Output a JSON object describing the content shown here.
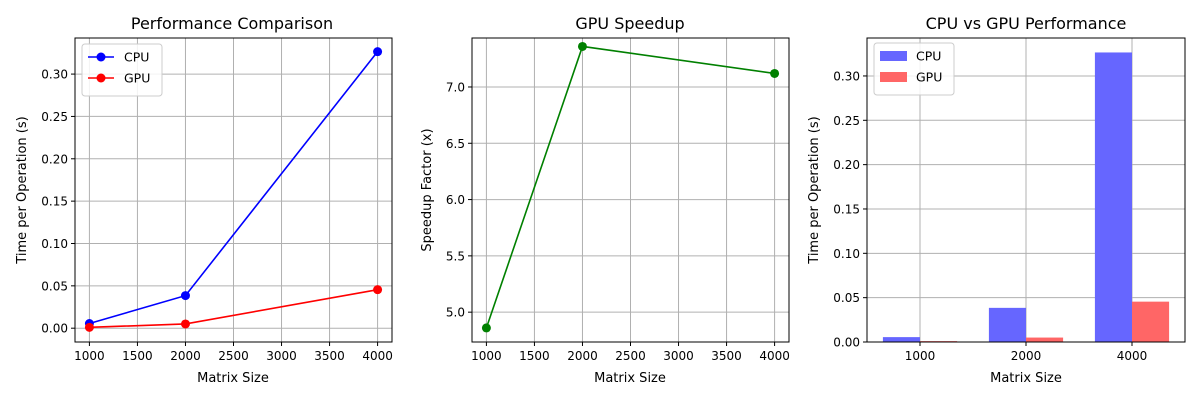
{
  "chart_data": [
    {
      "type": "line",
      "title": "Performance Comparison",
      "xlabel": "Matrix Size",
      "ylabel": "Time per Operation (s)",
      "x": [
        1000,
        2000,
        4000
      ],
      "xlim": [
        850,
        4150
      ],
      "ylim": [
        -0.0163,
        0.3426
      ],
      "xticks": [
        1000,
        1500,
        2000,
        2500,
        3000,
        3500,
        4000
      ],
      "xtick_labels": [
        "1000",
        "1500",
        "2000",
        "2500",
        "3000",
        "3500",
        "4000"
      ],
      "yticks": [
        0.0,
        0.05,
        0.1,
        0.15,
        0.2,
        0.25,
        0.3
      ],
      "ytick_labels": [
        "0.00",
        "0.05",
        "0.10",
        "0.15",
        "0.20",
        "0.25",
        "0.30"
      ],
      "grid": true,
      "legend": "upper-left",
      "series": [
        {
          "name": "CPU",
          "values": [
            0.0055,
            0.0385,
            0.3265
          ],
          "color": "#0000ff"
        },
        {
          "name": "GPU",
          "values": [
            0.001,
            0.005,
            0.0455
          ],
          "color": "#ff0000"
        }
      ]
    },
    {
      "type": "line",
      "title": "GPU Speedup",
      "xlabel": "Matrix Size",
      "ylabel": "Speedup Factor (x)",
      "x": [
        1000,
        2000,
        4000
      ],
      "xlim": [
        850,
        4150
      ],
      "ylim": [
        4.735,
        7.435
      ],
      "xticks": [
        1000,
        1500,
        2000,
        2500,
        3000,
        3500,
        4000
      ],
      "xtick_labels": [
        "1000",
        "1500",
        "2000",
        "2500",
        "3000",
        "3500",
        "4000"
      ],
      "yticks": [
        5.0,
        5.5,
        6.0,
        6.5,
        7.0
      ],
      "ytick_labels": [
        "5.0",
        "5.5",
        "6.0",
        "6.5",
        "7.0"
      ],
      "grid": true,
      "series": [
        {
          "values": [
            4.86,
            7.36,
            7.12
          ],
          "color": "#008000"
        }
      ]
    },
    {
      "type": "bar",
      "title": "CPU vs GPU Performance",
      "xlabel": "Matrix Size",
      "ylabel": "Time per Operation (s)",
      "categories": [
        "1000",
        "2000",
        "4000"
      ],
      "ylim": [
        0,
        0.3428
      ],
      "yticks": [
        0.0,
        0.05,
        0.1,
        0.15,
        0.2,
        0.25,
        0.3
      ],
      "ytick_labels": [
        "0.00",
        "0.05",
        "0.10",
        "0.15",
        "0.20",
        "0.25",
        "0.30"
      ],
      "grid": true,
      "legend": "upper-left",
      "series": [
        {
          "name": "CPU",
          "values": [
            0.0055,
            0.0385,
            0.3265
          ],
          "color": "#6666ff"
        },
        {
          "name": "GPU",
          "values": [
            0.001,
            0.005,
            0.0455
          ],
          "color": "#ff6666"
        }
      ]
    }
  ]
}
